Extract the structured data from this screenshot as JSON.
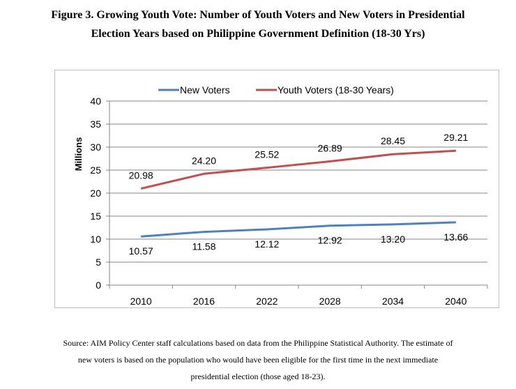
{
  "figure": {
    "title_line1": "Figure 3. Growing Youth Vote: Number of Youth Voters and New Voters in Presidential",
    "title_line2": "Election Years based on Philippine Government Definition (18-30 Yrs)"
  },
  "source": {
    "line1": "Source: AIM Policy Center staff calculations based on data from the Philippine Statistical Authority. The estimate of",
    "line2": "new voters is based on the population who would have been eligible for the first time in the next immediate",
    "line3": "presidential election (those aged 18-23)."
  },
  "chart_data": {
    "type": "line",
    "title": "",
    "xlabel": "",
    "ylabel": "Millions",
    "ylim": [
      0,
      40
    ],
    "yticks": [
      0,
      5,
      10,
      15,
      20,
      25,
      30,
      35,
      40
    ],
    "grid": true,
    "legend_position": "top",
    "categories": [
      "2010",
      "2016",
      "2022",
      "2028",
      "2034",
      "2040"
    ],
    "series": [
      {
        "name": "New Voters",
        "color": "#4f81bd",
        "values": [
          10.57,
          11.58,
          12.12,
          12.92,
          13.2,
          13.66
        ],
        "labels": [
          "10.57",
          "11.58",
          "12.12",
          "12.92",
          "13.20",
          "13.66"
        ]
      },
      {
        "name": "Youth Voters (18-30 Years)",
        "color": "#c0504d",
        "values": [
          20.98,
          24.2,
          25.52,
          26.89,
          28.45,
          29.21
        ],
        "labels": [
          "20.98",
          "24.20",
          "25.52",
          "26.89",
          "28.45",
          "29.21"
        ]
      }
    ]
  }
}
